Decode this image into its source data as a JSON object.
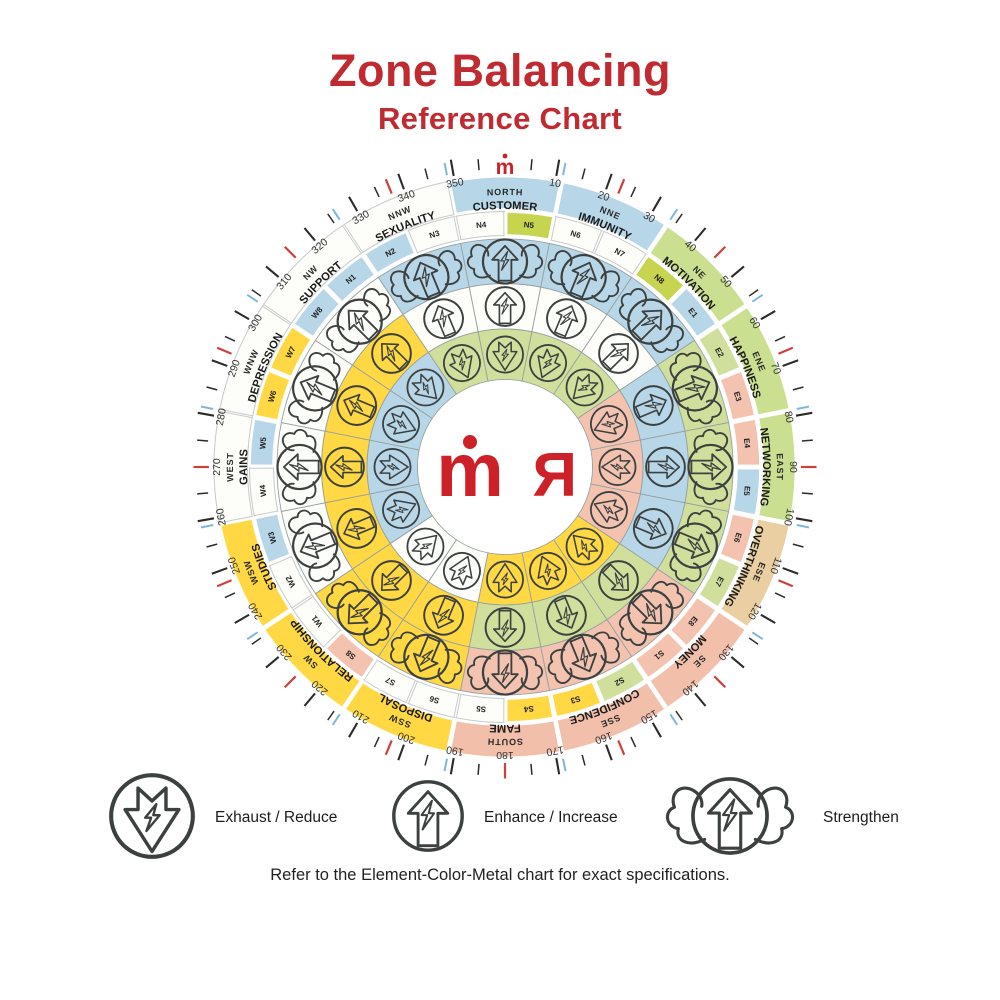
{
  "title": {
    "line1": "Zone Balancing",
    "line2": "Reference Chart"
  },
  "brand": {
    "center_logo_left": "m",
    "center_logo_right": "R",
    "top_mark": "m"
  },
  "footer": {
    "text": "Refer to the Element-Color-Metal chart for exact specifications."
  },
  "legend": {
    "items": [
      {
        "icon": "exhaust-icon",
        "label": "Exhaust / Reduce"
      },
      {
        "icon": "enhance-icon",
        "label": "Enhance / Increase"
      },
      {
        "icon": "strengthen-icon",
        "label": "Strengthen"
      }
    ]
  },
  "palette": {
    "blue": "#b7d7e8",
    "green": "#d0e09c",
    "lime": "#c6d44f",
    "pink": "#f3c3b0",
    "yellow": "#ffd843",
    "tan": "#e9cfa2",
    "white": "#fdfdf9",
    "band_green": "#cadf90",
    "band_pink": "#f2bfab",
    "red_tick": "#cf403b",
    "blue_tick": "#7cb8da",
    "black_tick": "#2b2b2b",
    "title_red": "#c02a31",
    "logo_red": "#cd2129",
    "text": "#1c1c1c",
    "cell_line": "#97a1a0",
    "guide_line": "#c8cccb"
  },
  "compass": {
    "ring_icons": {
      "outer": "strengthen-icon",
      "middle": "enhance-icon",
      "inner": "exhaust-icon"
    },
    "zones": [
      {
        "dir": "NORTH",
        "name": "CUSTOMER",
        "angle": 0,
        "band": "blue",
        "sectors": [
          {
            "code": "N4",
            "color": "white"
          },
          {
            "code": "N5",
            "color": "lime"
          }
        ],
        "rings": {
          "outer": "blue",
          "middle": "white",
          "inner": "green"
        }
      },
      {
        "dir": "NNE",
        "name": "IMMUNITY",
        "angle": 22.5,
        "band": "blue",
        "sectors": [
          {
            "code": "N6",
            "color": "white"
          },
          {
            "code": "N7",
            "color": "white"
          }
        ],
        "rings": {
          "outer": "blue",
          "middle": "white",
          "inner": "green"
        }
      },
      {
        "dir": "NE",
        "name": "MOTIVATION",
        "angle": 45,
        "band": "band_green",
        "sectors": [
          {
            "code": "N8",
            "color": "lime"
          },
          {
            "code": "E1",
            "color": "blue"
          }
        ],
        "rings": {
          "outer": "blue",
          "middle": "white",
          "inner": "green"
        }
      },
      {
        "dir": "ENE",
        "name": "HAPPINESS",
        "angle": 67.5,
        "band": "band_green",
        "sectors": [
          {
            "code": "E2",
            "color": "green"
          },
          {
            "code": "E3",
            "color": "pink"
          }
        ],
        "rings": {
          "outer": "green",
          "middle": "blue",
          "inner": "pink"
        }
      },
      {
        "dir": "EAST",
        "name": "NETWORKING",
        "angle": 90,
        "band": "band_green",
        "sectors": [
          {
            "code": "E4",
            "color": "pink"
          },
          {
            "code": "E5",
            "color": "blue"
          }
        ],
        "rings": {
          "outer": "green",
          "middle": "blue",
          "inner": "pink"
        }
      },
      {
        "dir": "ESE",
        "name": "OVERTHINKING",
        "angle": 112.5,
        "band": "tan",
        "sectors": [
          {
            "code": "E6",
            "color": "pink"
          },
          {
            "code": "E7",
            "color": "green"
          }
        ],
        "rings": {
          "outer": "green",
          "middle": "blue",
          "inner": "pink"
        }
      },
      {
        "dir": "SE",
        "name": "MONEY",
        "angle": 135,
        "band": "band_pink",
        "sectors": [
          {
            "code": "E8",
            "color": "pink"
          },
          {
            "code": "S1",
            "color": "pink"
          }
        ],
        "rings": {
          "outer": "pink",
          "middle": "green",
          "inner": "yellow"
        }
      },
      {
        "dir": "SSE",
        "name": "CONFIDENCE",
        "angle": 157.5,
        "band": "band_pink",
        "sectors": [
          {
            "code": "S2",
            "color": "green"
          },
          {
            "code": "S3",
            "color": "yellow"
          }
        ],
        "rings": {
          "outer": "pink",
          "middle": "green",
          "inner": "yellow"
        }
      },
      {
        "dir": "SOUTH",
        "name": "FAME",
        "angle": 180,
        "band": "band_pink",
        "sectors": [
          {
            "code": "S4",
            "color": "yellow"
          },
          {
            "code": "S5",
            "color": "white"
          }
        ],
        "rings": {
          "outer": "pink",
          "middle": "green",
          "inner": "yellow"
        }
      },
      {
        "dir": "SSW",
        "name": "DISPOSAL",
        "angle": 202.5,
        "band": "yellow",
        "sectors": [
          {
            "code": "S6",
            "color": "white"
          },
          {
            "code": "S7",
            "color": "white"
          }
        ],
        "rings": {
          "outer": "yellow",
          "middle": "yellow",
          "inner": "white"
        }
      },
      {
        "dir": "SW",
        "name": "RELATIONSHIP",
        "angle": 225,
        "band": "yellow",
        "sectors": [
          {
            "code": "S8",
            "color": "pink"
          },
          {
            "code": "W1",
            "color": "white"
          }
        ],
        "rings": {
          "outer": "yellow",
          "middle": "yellow",
          "inner": "white"
        }
      },
      {
        "dir": "WSW",
        "name": "STUDIES",
        "angle": 247.5,
        "band": "yellow",
        "sectors": [
          {
            "code": "W2",
            "color": "white"
          },
          {
            "code": "W3",
            "color": "blue"
          }
        ],
        "rings": {
          "outer": "white",
          "middle": "yellow",
          "inner": "blue"
        }
      },
      {
        "dir": "WEST",
        "name": "GAINS",
        "angle": 270,
        "band": "white",
        "sectors": [
          {
            "code": "W4",
            "color": "white"
          },
          {
            "code": "W5",
            "color": "blue"
          }
        ],
        "rings": {
          "outer": "white",
          "middle": "yellow",
          "inner": "blue"
        }
      },
      {
        "dir": "WNW",
        "name": "DEPRESSION",
        "angle": 292.5,
        "band": "white",
        "sectors": [
          {
            "code": "W6",
            "color": "yellow"
          },
          {
            "code": "W7",
            "color": "yellow"
          }
        ],
        "rings": {
          "outer": "white",
          "middle": "yellow",
          "inner": "blue"
        }
      },
      {
        "dir": "NW",
        "name": "SUPPORT",
        "angle": 315,
        "band": "white",
        "sectors": [
          {
            "code": "W8",
            "color": "blue"
          },
          {
            "code": "N1",
            "color": "blue"
          }
        ],
        "rings": {
          "outer": "white",
          "middle": "yellow",
          "inner": "blue"
        }
      },
      {
        "dir": "NNW",
        "name": "SEXUALITY",
        "angle": 337.5,
        "band": "white",
        "sectors": [
          {
            "code": "N2",
            "color": "blue"
          },
          {
            "code": "N3",
            "color": "white"
          }
        ],
        "rings": {
          "outer": "blue",
          "middle": "white",
          "inner": "green"
        }
      }
    ],
    "degree_labels": [
      10,
      20,
      30,
      40,
      50,
      60,
      70,
      80,
      90,
      100,
      110,
      120,
      130,
      140,
      150,
      160,
      170,
      180,
      190,
      200,
      210,
      220,
      230,
      240,
      250,
      260,
      270,
      280,
      290,
      300,
      310,
      320,
      330,
      340,
      350
    ],
    "ticks": {
      "minor_step": 5,
      "major_step": 10,
      "red_step": 22.5,
      "blue_start": 11.25,
      "blue_step": 22.5
    }
  }
}
